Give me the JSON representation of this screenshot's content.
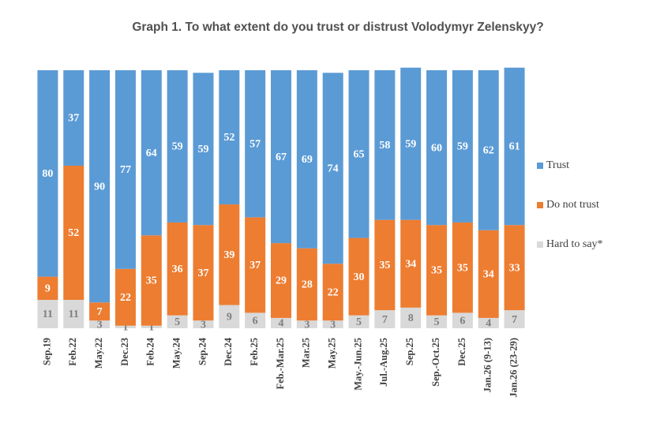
{
  "chart_data": {
    "type": "stacked-bar",
    "title": "Graph 1. To what extent do you trust or distrust Volodymyr Zelenskyy?",
    "categories": [
      "Sep.19",
      "Feb.22",
      "May.22",
      "Dec.23",
      "Feb.24",
      "May.24",
      "Sep.24",
      "Dec.24",
      "Feb.25",
      "Feb.-Mar.25",
      "Mar.25",
      "May.25",
      "May.-Jun.25",
      "Jul.-Aug.25",
      "Sep.25",
      "Sep.-Oct.25",
      "Dec.25",
      "Jan.26 (9-13)",
      "Jan.26 (23-29)"
    ],
    "ylim": [
      0,
      100
    ],
    "legend": "right",
    "series": [
      {
        "name": "Hard to say*",
        "color": "#d9d9d9",
        "label_color": "#7f7f7f",
        "values": [
          11,
          11,
          3,
          1,
          1,
          5,
          3,
          9,
          6,
          4,
          3,
          3,
          5,
          7,
          8,
          5,
          6,
          4,
          7
        ]
      },
      {
        "name": "Do not trust",
        "color": "#ed7d31",
        "label_color": "#ffffff",
        "values": [
          9,
          52,
          7,
          22,
          35,
          36,
          37,
          39,
          37,
          29,
          28,
          22,
          30,
          35,
          34,
          35,
          35,
          34,
          33
        ]
      },
      {
        "name": "Trust",
        "color": "#5b9bd5",
        "label_color": "#ffffff",
        "values": [
          80,
          37,
          90,
          77,
          64,
          59,
          59,
          52,
          57,
          67,
          69,
          74,
          65,
          58,
          59,
          60,
          59,
          62,
          61
        ]
      }
    ]
  }
}
